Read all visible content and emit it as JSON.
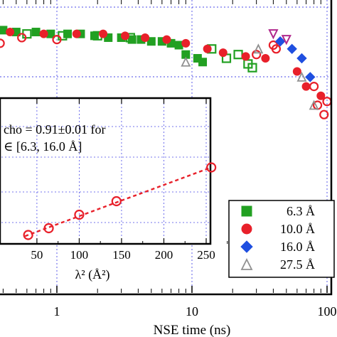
{
  "chart_data": [
    {
      "type": "scatter",
      "xlabel": "NSE time (ns)",
      "xscale": "log",
      "xlim": [
        0.3,
        110
      ],
      "ylim": [
        0.86,
        1.01
      ],
      "x_ticks": [
        1,
        10,
        100
      ],
      "x_tick_labels": [
        "1",
        "10",
        "100"
      ],
      "grid": true,
      "legend_position": "bottom-right",
      "series": [
        {
          "name": "6.3 Å",
          "marker": "filled-square",
          "color": "#22a022",
          "x": [
            0.4,
            0.5,
            0.7,
            0.9,
            1.2,
            1.5,
            1.9,
            2.4,
            3.0,
            3.6,
            4.2,
            5.0,
            6.0,
            7.0,
            8.0,
            9.0,
            11.0,
            12.0
          ],
          "y": [
            1.0,
            0.999,
            0.999,
            0.998,
            0.998,
            0.998,
            0.997,
            0.996,
            0.996,
            0.995,
            0.995,
            0.994,
            0.994,
            0.993,
            0.992,
            0.987,
            0.985,
            0.983
          ]
        },
        {
          "name": "6.3 Å open",
          "marker": "open-square",
          "color": "#22a022",
          "x": [
            0.35,
            0.6,
            1.1,
            2.0,
            3.5,
            14.0,
            18.0,
            22.0,
            26.0,
            28.0
          ],
          "y": [
            0.997,
            0.998,
            0.997,
            0.997,
            0.996,
            0.99,
            0.985,
            0.987,
            0.982,
            0.98
          ]
        },
        {
          "name": "10.0 Å",
          "marker": "filled-circle",
          "color": "#e8202a",
          "x": [
            0.45,
            0.8,
            1.4,
            2.2,
            3.2,
            4.5,
            6.5,
            9.0,
            13.0,
            17.0,
            25.0,
            35.0,
            60.0,
            70.0,
            90.0
          ],
          "y": [
            0.999,
            0.998,
            0.998,
            0.998,
            0.997,
            0.996,
            0.995,
            0.993,
            0.99,
            0.988,
            0.986,
            0.985,
            0.978,
            0.97,
            0.965
          ]
        },
        {
          "name": "10.0 Å open",
          "marker": "open-circle",
          "color": "#e8202a",
          "x": [
            0.38,
            0.55,
            1.0,
            30.0,
            40.0,
            42.0,
            80.0,
            85.0,
            95.0,
            100.0
          ],
          "y": [
            0.993,
            0.996,
            0.995,
            0.987,
            0.992,
            0.99,
            0.97,
            0.96,
            0.955,
            0.962
          ]
        },
        {
          "name": "16.0 Å",
          "marker": "filled-diamond",
          "color": "#1f4fe0",
          "x": [
            45.0,
            55.0,
            65.0,
            75.0
          ],
          "y": [
            0.994,
            0.99,
            0.985,
            0.975
          ]
        },
        {
          "name": "16.0 Å open",
          "marker": "open-triangle-down",
          "color": "#b0288c",
          "x": [
            40.0,
            50.0
          ],
          "y": [
            0.998,
            0.995
          ]
        },
        {
          "name": "27.5 Å",
          "marker": "open-triangle",
          "color": "#909090",
          "x": [
            9.0,
            31.0,
            65.0,
            80.0
          ],
          "y": [
            0.983,
            0.99,
            0.975,
            0.96
          ]
        }
      ],
      "legend": [
        {
          "label": "6.3 Å",
          "marker": "filled-square",
          "color": "#22a022"
        },
        {
          "label": "10.0 Å",
          "marker": "filled-circle",
          "color": "#e8202a"
        },
        {
          "label": "16.0 Å",
          "marker": "filled-diamond",
          "color": "#1f4fe0"
        },
        {
          "label": "27.5 Å",
          "marker": "open-triangle",
          "color": "#909090"
        }
      ]
    },
    {
      "type": "line",
      "xlabel": "λ² (Å²)",
      "xlim": [
        36,
        290
      ],
      "ylim": [
        0,
        1
      ],
      "x_ticks": [
        50,
        100,
        150,
        200,
        250
      ],
      "x_tick_labels": [
        "50",
        "100",
        "150",
        "200",
        "250"
      ],
      "grid": true,
      "marker": "open-circle",
      "color": "#e8202a",
      "line_style": "dashed",
      "x": [
        39.7,
        64,
        100,
        144,
        256
      ],
      "y": [
        0.05,
        0.1,
        0.2,
        0.3,
        0.55
      ],
      "annotation_line1": "cho = 0.91±0.01 for",
      "annotation_line2": "∈ [6.3, 16.0 Å]"
    }
  ]
}
